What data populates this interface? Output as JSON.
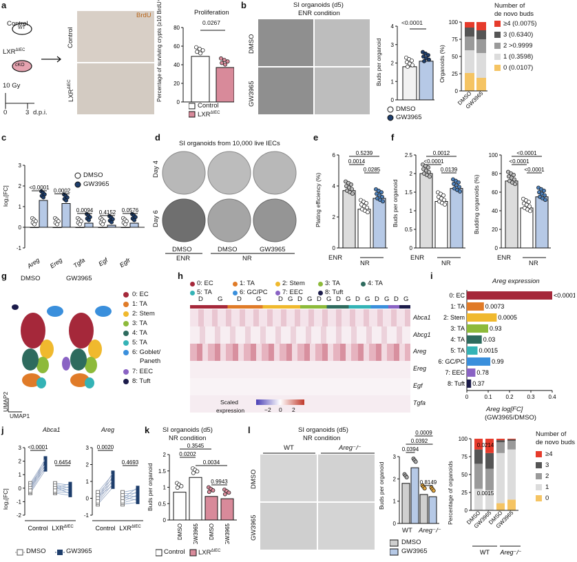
{
  "panels": [
    "a",
    "b",
    "c",
    "d",
    "e",
    "f",
    "g",
    "h",
    "i",
    "j",
    "k",
    "l"
  ],
  "a": {
    "schematic": {
      "control": "Control",
      "wt": "WT",
      "lxr": "LXR",
      "lxr_sup": "ΔIEC",
      "cko": "cKO",
      "dose": "10 Gy",
      "t0": "0",
      "t3": "3",
      "dpi": "d.p.i."
    },
    "image_labels": {
      "control": "Control",
      "lxr": "LXR",
      "lxr_sup": "ΔIEC",
      "stain": "BrdU"
    },
    "chart_title": "Proliferation",
    "ylabel": "Percentage of surviving crypts (≥10 BrdU⁺ cells per crypt)",
    "pvalue": "0.0267",
    "legend": [
      "Control",
      "LXR"
    ],
    "legend_sup": "ΔIEC"
  },
  "b": {
    "title_line1": "SI organoids (d5)",
    "title_line2": "ENR condition",
    "row_labels": [
      "DMSO",
      "GW3965"
    ],
    "buds_ylabel": "Buds per organoid",
    "buds_pvalue": "<0.0001",
    "legend": [
      "DMSO",
      "GW3965"
    ],
    "stack_ylabel": "Organoids (%)",
    "stack_legend_title": [
      "Number of",
      "de novo buds"
    ],
    "stack_legend": [
      "≥4 (0.0075)",
      "3 (0.6340)",
      "2 >0.9999",
      "1 (0.3598)",
      "0 (0.0107)"
    ],
    "stack_xlabels": [
      "DMSO",
      "GW3965"
    ]
  },
  "c": {
    "ylabel": "log₂[FC]",
    "genes": [
      "Areg",
      "Ereg",
      "Tgfa",
      "Egf",
      "Egfr"
    ],
    "pvalues": [
      "<0.0001",
      "0.0002",
      "0.0094",
      "0.4152",
      "0.0576"
    ],
    "legend": [
      "DMSO",
      "GW3965"
    ]
  },
  "d": {
    "title": "SI organoids from 10,000 live IECs",
    "row_labels": [
      "Day 4",
      "Day 6"
    ],
    "col_labels": [
      "DMSO",
      "DMSO",
      "GW3965"
    ],
    "group_labels": [
      "ENR",
      "NR"
    ]
  },
  "e": {
    "ylabel": "Plating efficiency (%)",
    "pvalues": [
      "0.5239",
      "0.0014",
      "0.0285"
    ],
    "xlabels": [
      "ENR",
      "NR"
    ]
  },
  "f": {
    "buds_ylabel": "Buds per organoid",
    "buds_pvalues": [
      "0.0012",
      "<0.0001",
      "0.0139"
    ],
    "budding_ylabel": "Budding organoids (%)",
    "budding_pvalues": [
      "<0.0001",
      "<0.0001",
      "<0.0001"
    ],
    "xlabels": [
      "ENR",
      "NR"
    ]
  },
  "g": {
    "titles": [
      "DMSO",
      "GW3965"
    ],
    "clusters": [
      "0: EC",
      "1: TA",
      "2: Stem",
      "3: TA",
      "4: TA",
      "5: TA",
      "6: Goblet/",
      "Paneth",
      "7: EEC",
      "8: Tuft"
    ],
    "axis": [
      "UMAP1",
      "UMAP2"
    ]
  },
  "h": {
    "legend": [
      "0: EC",
      "1: TA",
      "2: Stem",
      "3: TA",
      "4: TA",
      "5: TA",
      "6: GC/PC",
      "7: EEC",
      "8: Tuft"
    ],
    "group_letters": [
      "D",
      "G",
      "D",
      "G",
      "D",
      "G",
      "D",
      "G",
      "D",
      "G",
      "D",
      "G",
      "D",
      "G",
      "D",
      "G",
      "D",
      "G"
    ],
    "genes": [
      "Abca1",
      "Abcg1",
      "Areg",
      "Ereg",
      "Egf",
      "Tgfa"
    ],
    "scale_label": [
      "Scaled",
      "expression"
    ],
    "scale_ticks": [
      "−2",
      "0",
      "2"
    ]
  },
  "i": {
    "title": "Areg expression",
    "clusters": [
      "0: EC",
      "1: TA",
      "2: Stem",
      "3: TA",
      "4: TA",
      "5: TA",
      "6: GC/PC",
      "7: EEC",
      "8: Tuft"
    ],
    "pvalues": [
      "<0.0001",
      "0.0073",
      "0.0005",
      "0.93",
      "0.03",
      "0.0015",
      "0.99",
      "0.78",
      "0.37"
    ],
    "xticks": [
      "0",
      "0.1",
      "0.2",
      "0.3",
      "0.4"
    ],
    "xlabel": [
      "Areg log[FC]",
      "(GW3965/DMSO)"
    ]
  },
  "j": {
    "genes": [
      "Abca1",
      "Areg"
    ],
    "ylabel": "log₂[FC]",
    "abca1_pvalues": [
      "<0.0001",
      "0.6454"
    ],
    "areg_pvalues": [
      "0.0020",
      "0.4693"
    ],
    "xlabels": [
      "Control",
      "LXR"
    ],
    "x_sup": "ΔIEC",
    "legend": [
      "DMSO",
      "GW3965"
    ]
  },
  "k": {
    "title_line1": "SI organoids (d5)",
    "title_line2": "NR condition",
    "ylabel": "Buds per organoid",
    "pvalues": [
      "0.3545",
      "0.0202",
      "0.0034",
      "0.9943"
    ],
    "xlabels": [
      "DMSO",
      "GW3965",
      "DMSO",
      "GW3965"
    ],
    "legend": [
      "Control",
      "LXR"
    ],
    "legend_sup": "ΔIEC"
  },
  "l": {
    "title_line1": "SI organoids (d5)",
    "title_line2": "NR condition",
    "col_labels": [
      "WT",
      "Areg⁻/⁻"
    ],
    "row_labels": [
      "DMSO",
      "GW3965"
    ],
    "buds_ylabel": "Buds per organoid",
    "buds_pvalues": [
      "0.0009",
      "0.0392",
      "0.0394",
      "0.8149"
    ],
    "buds_xlabels": [
      "WT",
      "Areg⁻/⁻"
    ],
    "legend": [
      "DMSO",
      "GW3965"
    ],
    "stack_ylabel": "Percentage of organoids",
    "stack_pvalues": [
      "0.0214",
      "0.0015"
    ],
    "stack_legend_title": [
      "Number of",
      "de novo buds"
    ],
    "stack_legend": [
      "≥4",
      "3",
      "2",
      "1",
      "0"
    ],
    "stack_xlabels": [
      "DMSO",
      "GW3965",
      "DMSO",
      "GW3965"
    ],
    "stack_groups": [
      "WT",
      "Areg⁻/⁻"
    ]
  },
  "colors": {
    "blue": "#4d7fb8",
    "navy": "#1d3d6b",
    "lightblue": "#b6c9e6",
    "pink": "#d88a9a",
    "red": "#e63b2b",
    "darkgrey": "#555555",
    "grey": "#9a9a9a",
    "lightgrey": "#dcdcdc",
    "yellow": "#f5c463"
  },
  "chart_data": [
    {
      "panel": "a",
      "type": "bar",
      "categories": [
        "Control",
        "LXRΔIEC"
      ],
      "values": [
        49,
        37
      ],
      "ylim": [
        0,
        80
      ],
      "yticks": [
        0,
        20,
        40,
        60,
        80
      ]
    },
    {
      "panel": "b-buds",
      "type": "bar",
      "categories": [
        "DMSO",
        "GW3965"
      ],
      "values": [
        1.8,
        2.1
      ],
      "ylim": [
        0,
        4
      ],
      "yticks": [
        0,
        1,
        2,
        3,
        4
      ]
    },
    {
      "panel": "b-stack",
      "type": "bar",
      "categories": [
        "DMSO",
        "GW3965"
      ],
      "series": [
        {
          "name": "0",
          "values": [
            26,
            19
          ]
        },
        {
          "name": "1",
          "values": [
            33,
            36
          ]
        },
        {
          "name": "2",
          "values": [
            20,
            20
          ]
        },
        {
          "name": "3",
          "values": [
            13,
            13
          ]
        },
        {
          "name": "≥4",
          "values": [
            8,
            12
          ]
        }
      ],
      "ylim": [
        0,
        100
      ],
      "yticks": [
        0,
        25,
        50,
        75,
        100
      ]
    },
    {
      "panel": "c",
      "type": "bar",
      "categories": [
        "Areg",
        "Ereg",
        "Tgfa",
        "Egf",
        "Egfr"
      ],
      "series": [
        {
          "name": "DMSO",
          "values": [
            0.0,
            0.0,
            0.0,
            0.0,
            0.0
          ]
        },
        {
          "name": "GW3965",
          "values": [
            1.3,
            1.15,
            0.2,
            0.1,
            0.2
          ]
        }
      ],
      "ylim": [
        -1,
        3
      ],
      "yticks": [
        -1,
        0,
        1,
        2,
        3
      ]
    },
    {
      "panel": "e",
      "type": "bar",
      "categories": [
        "ENR",
        "NR DMSO",
        "NR GW3965"
      ],
      "values": [
        3.7,
        2.5,
        3.2
      ],
      "ylim": [
        0,
        6
      ],
      "yticks": [
        0,
        2,
        4,
        6
      ]
    },
    {
      "panel": "f-buds",
      "type": "bar",
      "categories": [
        "ENR",
        "NR DMSO",
        "NR GW3965"
      ],
      "values": [
        2.0,
        1.25,
        1.6
      ],
      "ylim": [
        0,
        2.5
      ],
      "yticks": [
        0,
        0.5,
        1.0,
        1.5,
        2.0,
        2.5
      ]
    },
    {
      "panel": "f-budding",
      "type": "bar",
      "categories": [
        "ENR",
        "NR DMSO",
        "NR GW3965"
      ],
      "values": [
        72,
        43,
        55
      ],
      "ylim": [
        0,
        100
      ],
      "yticks": [
        0,
        20,
        40,
        60,
        80,
        100
      ]
    },
    {
      "panel": "i",
      "type": "bar",
      "categories": [
        "0: EC",
        "1: TA",
        "2: Stem",
        "3: TA",
        "4: TA",
        "5: TA",
        "6: GC/PC",
        "7: EEC",
        "8: Tuft"
      ],
      "values": [
        0.4,
        0.08,
        0.14,
        0.1,
        0.07,
        0.05,
        0.11,
        0.04,
        0.02
      ],
      "xlim": [
        0,
        0.4
      ]
    },
    {
      "panel": "j-Abca1",
      "type": "scatter",
      "categories": [
        "Control DMSO",
        "Control GW3965",
        "LXRΔIEC DMSO",
        "LXRΔIEC GW3965"
      ],
      "values": [
        0.0,
        1.8,
        0.0,
        -0.1
      ],
      "ylim": [
        -2,
        3
      ],
      "yticks": [
        -2,
        -1,
        0,
        1,
        2,
        3
      ]
    },
    {
      "panel": "j-Areg",
      "type": "scatter",
      "categories": [
        "Control DMSO",
        "Control GW3965",
        "LXRΔIEC DMSO",
        "LXRΔIEC GW3965"
      ],
      "values": [
        0.0,
        1.1,
        0.0,
        0.2
      ],
      "ylim": [
        -1,
        3
      ],
      "yticks": [
        -1,
        0,
        1,
        2,
        3
      ]
    },
    {
      "panel": "k",
      "type": "bar",
      "categories": [
        "Control DMSO",
        "Control GW3965",
        "LXRΔIEC DMSO",
        "LXRΔIEC GW3965"
      ],
      "values": [
        0.85,
        1.3,
        0.72,
        0.65
      ],
      "ylim": [
        0,
        2.0
      ],
      "yticks": [
        0,
        0.5,
        1.0,
        1.5,
        2.0
      ]
    },
    {
      "panel": "l-buds",
      "type": "bar",
      "categories": [
        "WT DMSO",
        "WT GW3965",
        "Areg−/− DMSO",
        "Areg−/− GW3965"
      ],
      "values": [
        1.8,
        2.5,
        1.3,
        1.2
      ],
      "ylim": [
        0,
        3
      ],
      "yticks": [
        0,
        1,
        2,
        3
      ]
    },
    {
      "panel": "l-stack",
      "type": "bar",
      "categories": [
        "WT DMSO",
        "WT GW3965",
        "Areg−/− DMSO",
        "Areg−/− GW3965"
      ],
      "series": [
        {
          "name": "0",
          "values": [
            0,
            0,
            10,
            15
          ]
        },
        {
          "name": "1",
          "values": [
            30,
            28,
            70,
            70
          ]
        },
        {
          "name": "2",
          "values": [
            35,
            30,
            15,
            12
          ]
        },
        {
          "name": "3",
          "values": [
            20,
            22,
            3,
            2
          ]
        },
        {
          "name": "≥4",
          "values": [
            15,
            20,
            2,
            1
          ]
        }
      ],
      "ylim": [
        0,
        100
      ],
      "yticks": [
        0,
        25,
        50,
        75,
        100
      ]
    }
  ]
}
